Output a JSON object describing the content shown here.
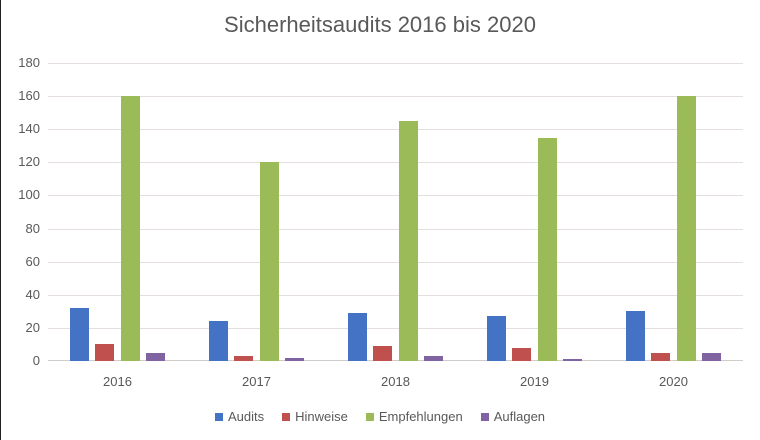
{
  "chart_data": {
    "type": "bar",
    "title": "Sicherheitsaudits 2016 bis 2020",
    "xlabel": "",
    "ylabel": "",
    "categories": [
      "2016",
      "2017",
      "2018",
      "2019",
      "2020"
    ],
    "series": [
      {
        "name": "Audits",
        "color": "#4472c4",
        "values": [
          32,
          24,
          29,
          27,
          30
        ]
      },
      {
        "name": "Hinweise",
        "color": "#c0504d",
        "values": [
          10,
          3,
          9,
          8,
          5
        ]
      },
      {
        "name": "Empfehlungen",
        "color": "#9bbb59",
        "values": [
          160,
          120,
          145,
          135,
          160
        ]
      },
      {
        "name": "Auflagen",
        "color": "#8064a2",
        "values": [
          5,
          2,
          3,
          1,
          5
        ]
      }
    ],
    "ylim": [
      0,
      180
    ],
    "yticks": [
      "0",
      "20",
      "40",
      "60",
      "80",
      "100",
      "120",
      "140",
      "160",
      "180"
    ],
    "grid": true,
    "legend_position": "bottom"
  }
}
